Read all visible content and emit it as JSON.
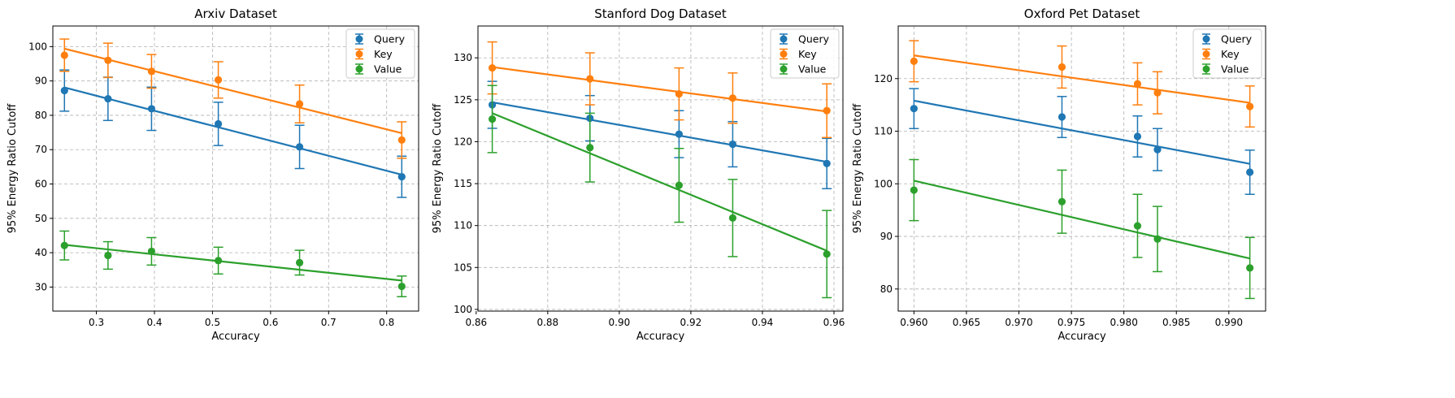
{
  "chart_data": [
    {
      "type": "scatter",
      "title": "Arxiv Dataset",
      "xlabel": "Accuracy",
      "ylabel": "95% Energy Ratio Cutoff",
      "xlim": [
        0.225,
        0.855
      ],
      "ylim": [
        23,
        106
      ],
      "xticks": [
        0.3,
        0.4,
        0.5,
        0.6,
        0.7,
        0.8
      ],
      "xtick_labels": [
        "0.3",
        "0.4",
        "0.5",
        "0.6",
        "0.7",
        "0.8"
      ],
      "yticks": [
        30,
        40,
        50,
        60,
        70,
        80,
        90,
        100
      ],
      "ytick_labels": [
        "30",
        "40",
        "50",
        "60",
        "70",
        "80",
        "90",
        "100"
      ],
      "grid": true,
      "legend": "top-right",
      "series": [
        {
          "name": "Query",
          "color": "#1f77b4",
          "x": [
            0.245,
            0.32,
            0.395,
            0.51,
            0.65,
            0.826
          ],
          "y": [
            87.2,
            84.8,
            81.9,
            77.5,
            70.8,
            62.1
          ],
          "err": [
            6.0,
            6.3,
            6.3,
            6.3,
            6.3,
            6.0
          ],
          "fit": [
            [
              0.245,
              88.1
            ],
            [
              0.826,
              62.7
            ]
          ]
        },
        {
          "name": "Key",
          "color": "#ff7f0e",
          "x": [
            0.245,
            0.32,
            0.395,
            0.51,
            0.65,
            0.826
          ],
          "y": [
            97.5,
            96.0,
            92.8,
            90.3,
            83.3,
            72.8
          ],
          "err": [
            4.7,
            5.0,
            4.9,
            5.3,
            5.5,
            5.3
          ],
          "fit": [
            [
              0.245,
              99.4
            ],
            [
              0.826,
              74.8
            ]
          ]
        },
        {
          "name": "Value",
          "color": "#2ca02c",
          "x": [
            0.245,
            0.32,
            0.395,
            0.51,
            0.65,
            0.826
          ],
          "y": [
            42.1,
            39.2,
            40.4,
            37.7,
            37.1,
            30.2
          ],
          "err": [
            4.2,
            4.0,
            4.0,
            3.9,
            3.6,
            3.0
          ],
          "fit": [
            [
              0.245,
              42.3
            ],
            [
              0.826,
              31.9
            ]
          ]
        }
      ]
    },
    {
      "type": "scatter",
      "title": "Stanford Dog Dataset",
      "xlabel": "Accuracy",
      "ylabel": "95% Energy Ratio Cutoff",
      "xlim": [
        0.8605,
        0.9625
      ],
      "ylim": [
        99.8,
        133.8
      ],
      "xticks": [
        0.86,
        0.88,
        0.9,
        0.92,
        0.94,
        0.96
      ],
      "xtick_labels": [
        "0.86",
        "0.88",
        "0.90",
        "0.92",
        "0.94",
        "0.96"
      ],
      "yticks": [
        100,
        105,
        110,
        115,
        120,
        125,
        130
      ],
      "ytick_labels": [
        "100",
        "105",
        "110",
        "115",
        "120",
        "125",
        "130"
      ],
      "grid": true,
      "legend": "top-right",
      "series": [
        {
          "name": "Query",
          "color": "#1f77b4",
          "x": [
            0.8645,
            0.8918,
            0.9167,
            0.9317,
            0.958
          ],
          "y": [
            124.4,
            122.8,
            120.9,
            119.7,
            117.4
          ],
          "err": [
            2.8,
            2.7,
            2.8,
            2.7,
            3.0
          ],
          "fit": [
            [
              0.8645,
              124.7
            ],
            [
              0.958,
              117.6
            ]
          ]
        },
        {
          "name": "Key",
          "color": "#ff7f0e",
          "x": [
            0.8645,
            0.8918,
            0.9167,
            0.9317,
            0.958
          ],
          "y": [
            128.8,
            127.5,
            125.7,
            125.2,
            123.7
          ],
          "err": [
            3.1,
            3.1,
            3.1,
            3.0,
            3.2
          ],
          "fit": [
            [
              0.8645,
              128.9
            ],
            [
              0.958,
              123.6
            ]
          ]
        },
        {
          "name": "Value",
          "color": "#2ca02c",
          "x": [
            0.8645,
            0.8918,
            0.9167,
            0.9317,
            0.958
          ],
          "y": [
            122.7,
            119.3,
            114.8,
            110.9,
            106.6
          ],
          "err": [
            4.0,
            4.1,
            4.4,
            4.6,
            5.2
          ],
          "fit": [
            [
              0.8645,
              123.4
            ],
            [
              0.958,
              107.0
            ]
          ]
        }
      ]
    },
    {
      "type": "scatter",
      "title": "Oxford Pet Dataset",
      "xlabel": "Accuracy",
      "ylabel": "95% Energy Ratio Cutoff",
      "xlim": [
        0.9585,
        0.9935
      ],
      "ylim": [
        75.8,
        130
      ],
      "xticks": [
        0.96,
        0.965,
        0.97,
        0.975,
        0.98,
        0.985,
        0.99
      ],
      "xtick_labels": [
        "0.960",
        "0.965",
        "0.970",
        "0.975",
        "0.980",
        "0.985",
        "0.990"
      ],
      "yticks": [
        80,
        90,
        100,
        110,
        120
      ],
      "ytick_labels": [
        "80",
        "90",
        "100",
        "110",
        "120"
      ],
      "grid": true,
      "legend": "top-right",
      "series": [
        {
          "name": "Query",
          "color": "#1f77b4",
          "x": [
            0.96,
            0.9741,
            0.9813,
            0.9832,
            0.992
          ],
          "y": [
            114.3,
            112.7,
            109.0,
            106.5,
            102.2
          ],
          "err": [
            3.8,
            3.9,
            3.9,
            4.0,
            4.2
          ],
          "fit": [
            [
              0.96,
              115.8
            ],
            [
              0.992,
              103.8
            ]
          ]
        },
        {
          "name": "Key",
          "color": "#ff7f0e",
          "x": [
            0.96,
            0.9741,
            0.9813,
            0.9832,
            0.992
          ],
          "y": [
            123.3,
            122.2,
            119.0,
            117.3,
            114.7
          ],
          "err": [
            3.9,
            4.0,
            4.0,
            4.0,
            3.9
          ],
          "fit": [
            [
              0.96,
              124.4
            ],
            [
              0.992,
              115.4
            ]
          ]
        },
        {
          "name": "Value",
          "color": "#2ca02c",
          "x": [
            0.96,
            0.9741,
            0.9813,
            0.9832,
            0.992
          ],
          "y": [
            98.8,
            96.6,
            92.0,
            89.5,
            84.0
          ],
          "err": [
            5.8,
            6.0,
            6.0,
            6.2,
            5.8
          ],
          "fit": [
            [
              0.96,
              100.6
            ],
            [
              0.992,
              85.8
            ]
          ]
        }
      ]
    }
  ]
}
